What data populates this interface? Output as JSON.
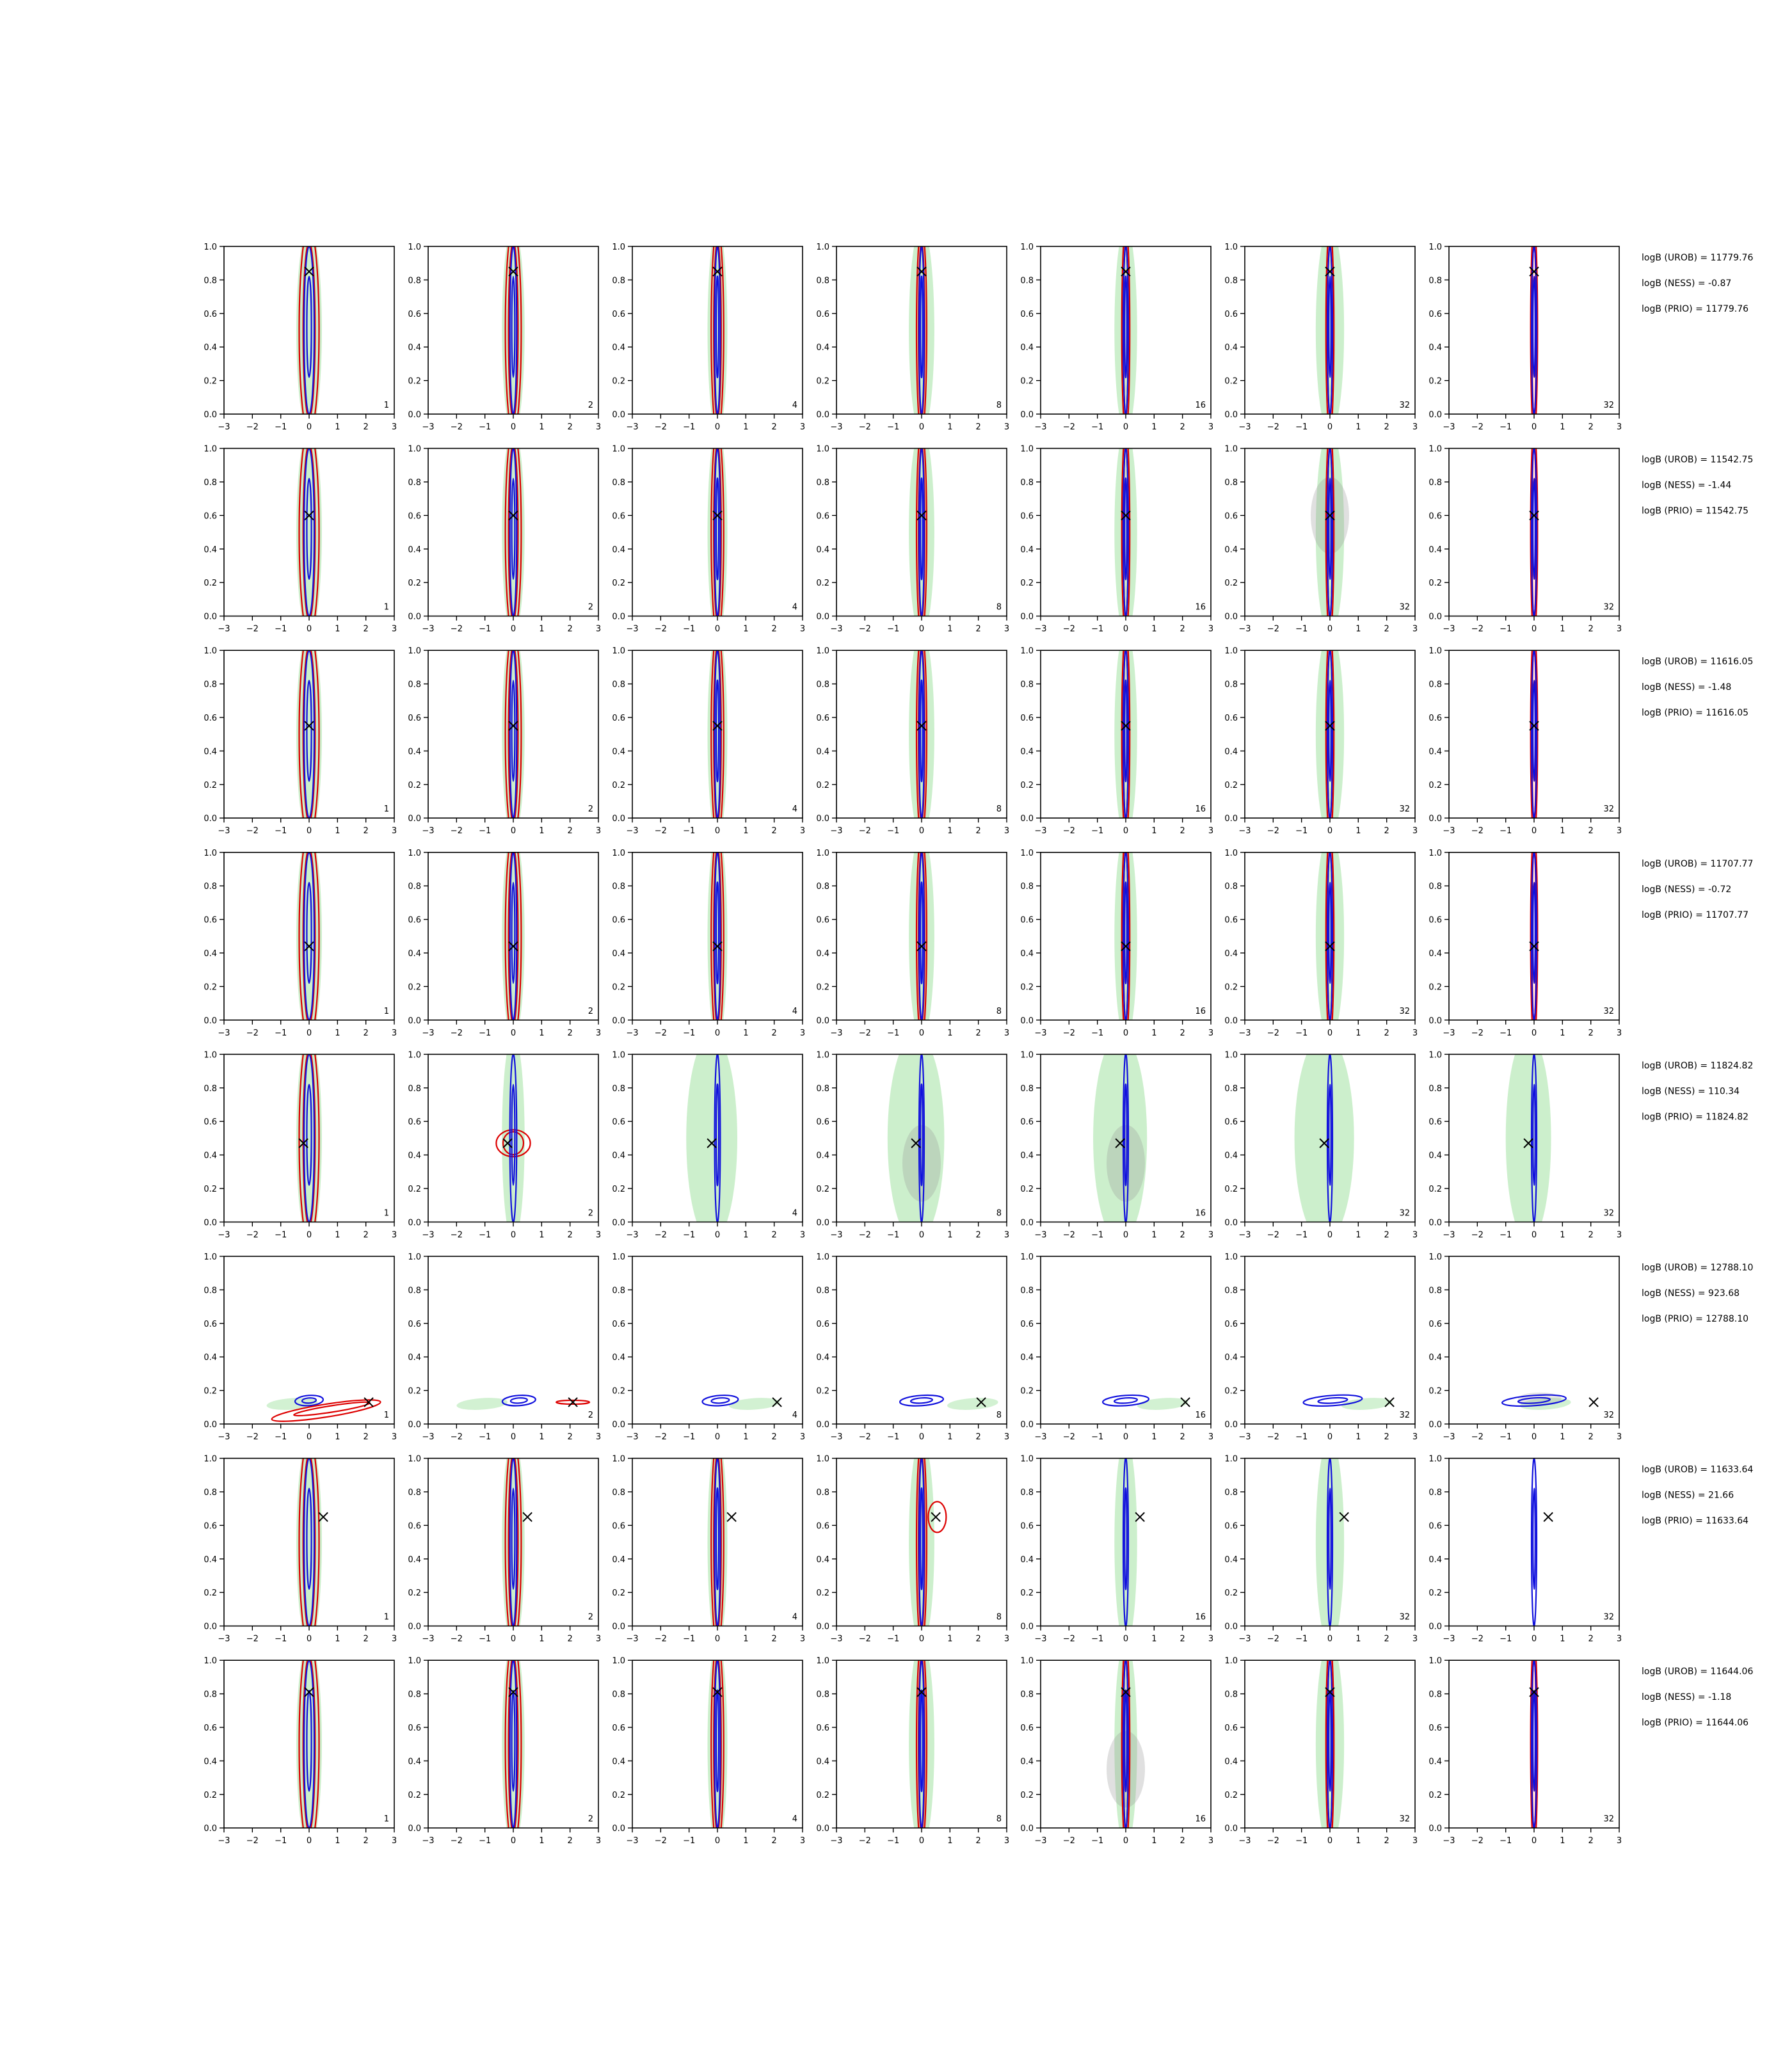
{
  "figure": {
    "columns": [
      "1",
      "2",
      "4",
      "8",
      "16",
      "32",
      "32"
    ],
    "x_ticks": [
      "−3",
      "−2",
      "−1",
      "0",
      "1",
      "2",
      "3"
    ],
    "y_ticks": [
      "0.0",
      "0.2",
      "0.4",
      "0.6",
      "0.8",
      "1.0"
    ],
    "colors": {
      "red_contour": "#dd0000",
      "blue_contour": "#1111dd",
      "green_fill": "#7fd67f",
      "grey_fill": "#999999",
      "marker": "#000000"
    }
  },
  "chart_data": {
    "type": "contour-grid",
    "rows": 8,
    "cols": 7,
    "xlim": [
      -3,
      3
    ],
    "ylim": [
      0,
      1
    ],
    "panels": [
      {
        "truth": [
          0.0,
          0.85
        ],
        "stats": [
          "logB (UROB) = 11779.76",
          "logB (NESS) = -0.87",
          "logB (PRIO) = 11779.76"
        ]
      },
      {
        "truth": [
          0.0,
          0.6
        ],
        "stats": [
          "logB (UROB) = 11542.75",
          "logB (NESS) = -1.44",
          "logB (PRIO) = 11542.75"
        ]
      },
      {
        "truth": [
          0.0,
          0.55
        ],
        "stats": [
          "logB (UROB) = 11616.05",
          "logB (NESS) = -1.48",
          "logB (PRIO) = 11616.05"
        ]
      },
      {
        "truth": [
          0.0,
          0.44
        ],
        "stats": [
          "logB (UROB) = 11707.77",
          "logB (NESS) = -0.72",
          "logB (PRIO) = 11707.77"
        ]
      },
      {
        "truth": [
          -0.2,
          0.47
        ],
        "stats": [
          "logB (UROB) = 11824.82",
          "logB (NESS) = 110.34",
          "logB (PRIO) = 11824.82"
        ]
      },
      {
        "truth": [
          2.1,
          0.13
        ],
        "stats": [
          "logB (UROB) = 12788.10",
          "logB (NESS) = 923.68",
          "logB (PRIO) = 12788.10"
        ]
      },
      {
        "truth": [
          0.5,
          0.65
        ],
        "stats": [
          "logB (UROB) = 11633.64",
          "logB (NESS) = 21.66",
          "logB (PRIO) = 11633.64"
        ]
      },
      {
        "truth": [
          0.0,
          0.81
        ],
        "stats": [
          "logB (UROB) = 11644.06",
          "logB (NESS) = -1.18",
          "logB (PRIO) = 11644.06"
        ]
      }
    ]
  }
}
